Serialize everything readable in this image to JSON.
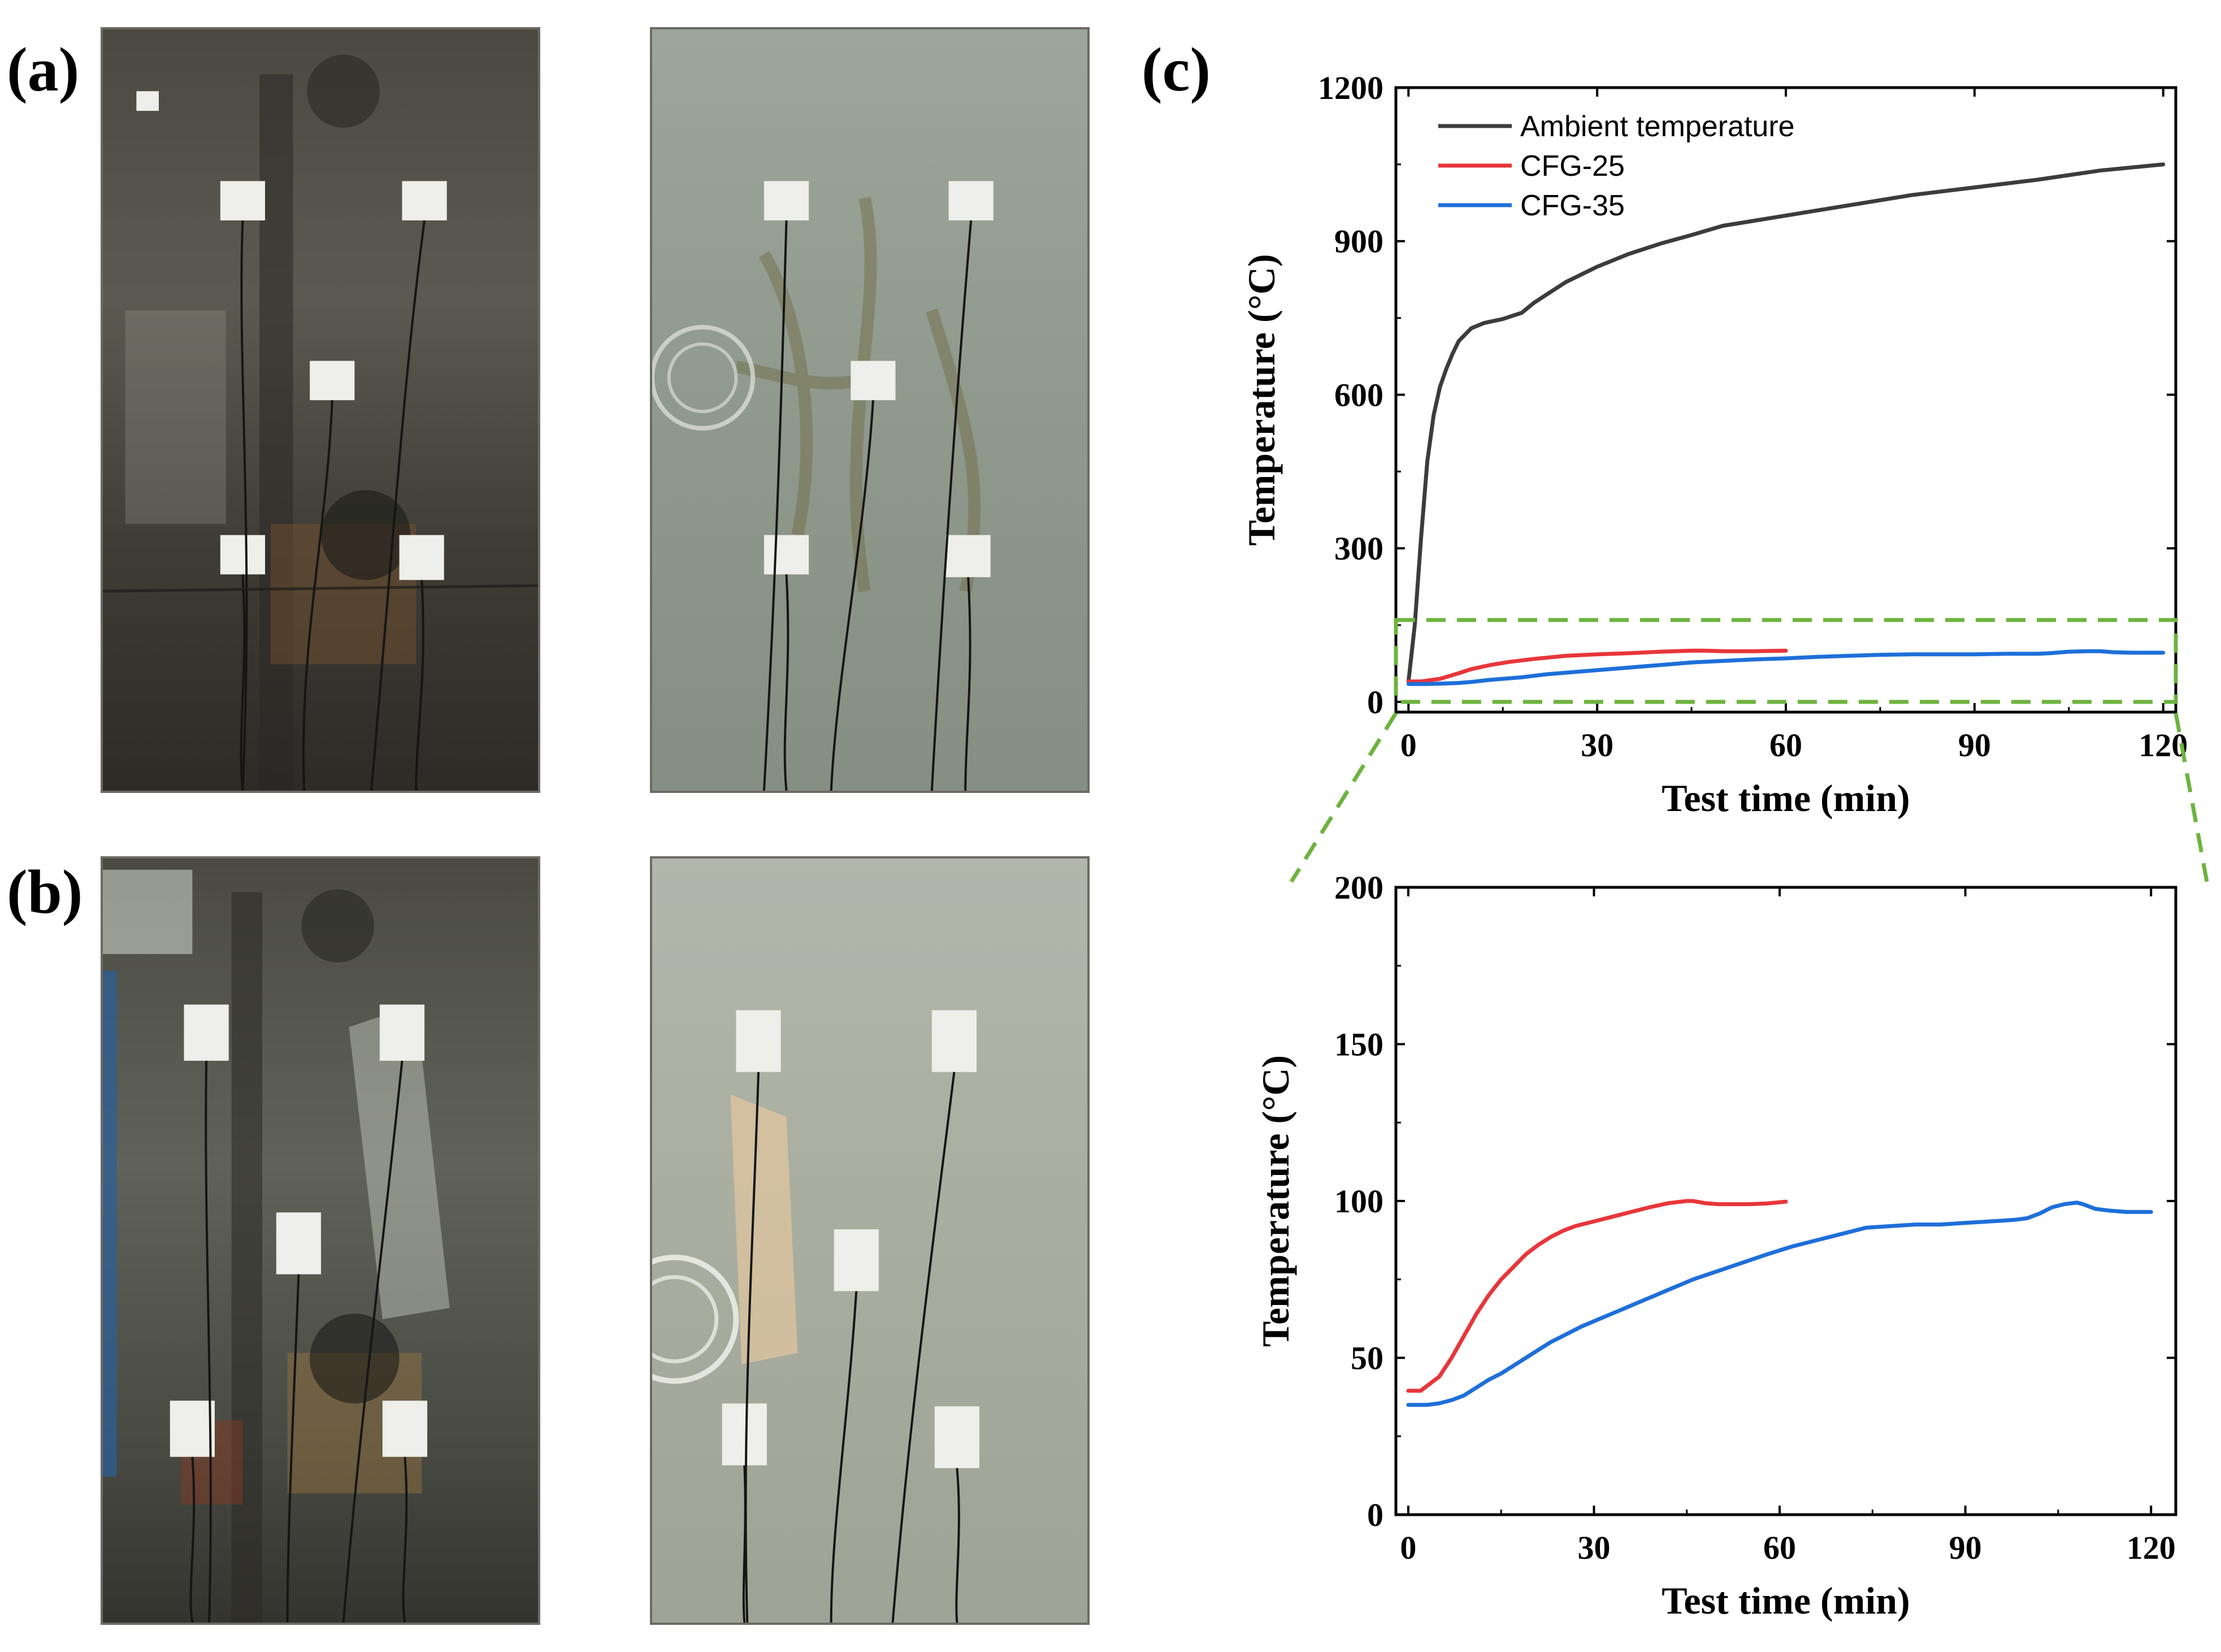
{
  "panels": {
    "a": {
      "label": "(a)"
    },
    "b": {
      "label": "(b)"
    },
    "c": {
      "label": "(c)"
    }
  },
  "colors": {
    "ambient": "#3c3c3c",
    "cfg25": "#e8363a",
    "cfg35": "#1e6fd9",
    "zoom_box": "#6db33f"
  },
  "chart_data": [
    {
      "type": "line",
      "xlabel": "Test time (min)",
      "ylabel": "Temperature (°C)",
      "xlim": [
        -2,
        122
      ],
      "ylim": [
        -20,
        1200
      ],
      "xticks": [
        0,
        30,
        60,
        90,
        120
      ],
      "yticks": [
        0,
        300,
        600,
        900,
        1200
      ],
      "legend_position": "top-left",
      "zoom_region": {
        "x": [
          -2,
          122
        ],
        "y": [
          0,
          160
        ]
      },
      "series": [
        {
          "name": "Ambient temperature",
          "color_key": "ambient",
          "x": [
            0,
            1,
            2,
            3,
            4,
            5,
            6,
            7,
            8,
            10,
            12,
            15,
            18,
            20,
            25,
            30,
            35,
            40,
            45,
            50,
            55,
            60,
            70,
            80,
            90,
            100,
            110,
            120
          ],
          "y": [
            40,
            150,
            320,
            470,
            560,
            615,
            650,
            680,
            705,
            730,
            740,
            748,
            760,
            780,
            820,
            850,
            875,
            895,
            912,
            930,
            940,
            950,
            970,
            990,
            1005,
            1020,
            1038,
            1050
          ]
        },
        {
          "name": "CFG-25",
          "color_key": "cfg25",
          "x": [
            0,
            2,
            5,
            8,
            10,
            13,
            16,
            20,
            25,
            30,
            35,
            40,
            45,
            47,
            50,
            55,
            60
          ],
          "y": [
            40,
            40,
            45,
            56,
            64,
            72,
            78,
            84,
            90,
            93,
            95,
            98,
            100,
            100,
            99,
            99,
            100
          ]
        },
        {
          "name": "CFG-35",
          "color_key": "cfg35",
          "x": [
            0,
            3,
            6,
            8,
            10,
            13,
            15,
            18,
            20,
            22,
            25,
            30,
            35,
            40,
            45,
            50,
            55,
            60,
            65,
            70,
            75,
            80,
            85,
            90,
            95,
            100,
            102,
            105,
            108,
            110,
            112,
            115,
            120
          ],
          "y": [
            35,
            35,
            36,
            37,
            39,
            43,
            45,
            48,
            51,
            54,
            57,
            62,
            67,
            72,
            77,
            80,
            83,
            85,
            88,
            90,
            92,
            93,
            93,
            93,
            94,
            94,
            95,
            98,
            99,
            99,
            97,
            96,
            96
          ]
        }
      ]
    },
    {
      "type": "line",
      "xlabel": "Test time (min)",
      "ylabel": "Temperature (°C)",
      "xlim": [
        -2,
        124
      ],
      "ylim": [
        0,
        200
      ],
      "xticks": [
        0,
        30,
        60,
        90,
        120
      ],
      "yticks": [
        0,
        50,
        100,
        150,
        200
      ],
      "series": [
        {
          "name": "CFG-25",
          "color_key": "cfg25",
          "x": [
            0,
            2,
            3,
            5,
            7,
            9,
            11,
            13,
            15,
            17,
            19,
            21,
            23,
            25,
            27,
            30,
            33,
            36,
            39,
            42,
            45,
            46,
            48,
            50,
            52,
            55,
            58,
            61
          ],
          "y": [
            39.5,
            39.5,
            41,
            44,
            50,
            57,
            64,
            70,
            75,
            79,
            83,
            86,
            88.5,
            90.5,
            92,
            93.5,
            95,
            96.5,
            98,
            99.3,
            100,
            100,
            99.3,
            99,
            99,
            99,
            99.2,
            99.8
          ]
        },
        {
          "name": "CFG-35",
          "color_key": "cfg35",
          "x": [
            0,
            3,
            5,
            7,
            9,
            11,
            13,
            15,
            17,
            19,
            21,
            23,
            25,
            28,
            31,
            34,
            37,
            40,
            43,
            46,
            49,
            52,
            55,
            58,
            62,
            66,
            70,
            74,
            78,
            82,
            86,
            90,
            94,
            98,
            100,
            102,
            104,
            106,
            108,
            109,
            111,
            113,
            116,
            120
          ],
          "y": [
            35,
            35,
            35.5,
            36.5,
            38,
            40.5,
            43,
            45,
            47.5,
            50,
            52.5,
            55,
            57,
            60,
            62.5,
            65,
            67.5,
            70,
            72.5,
            75,
            77,
            79,
            81,
            83,
            85.5,
            87.5,
            89.5,
            91.5,
            92,
            92.5,
            92.5,
            93,
            93.5,
            94,
            94.5,
            96,
            98,
            99,
            99.5,
            99,
            97.5,
            97,
            96.5,
            96.5
          ]
        }
      ]
    }
  ]
}
